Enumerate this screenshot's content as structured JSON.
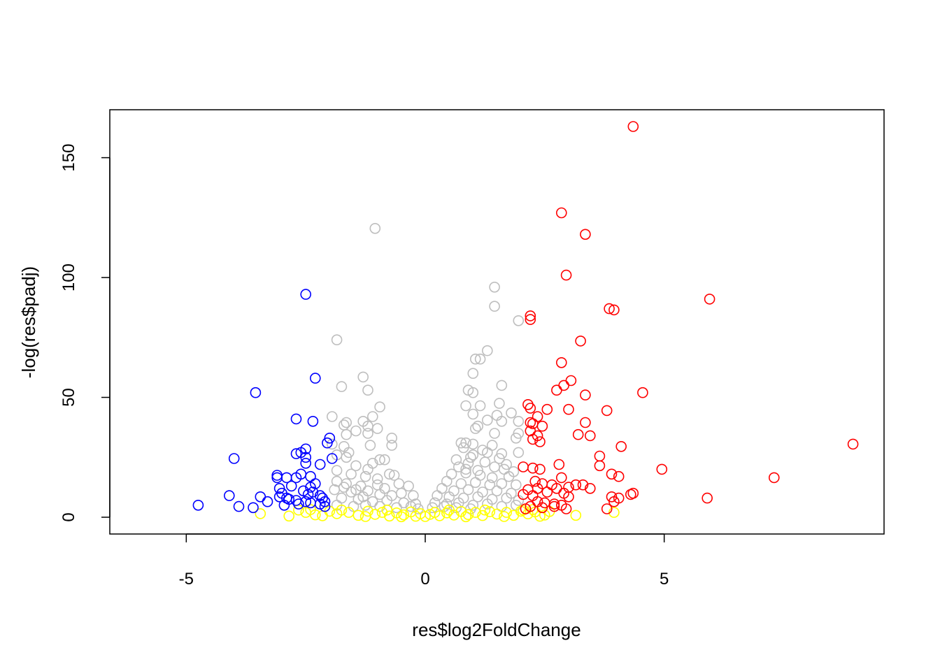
{
  "chart_data": {
    "type": "scatter",
    "title": "",
    "xlabel": "res$log2FoldChange",
    "ylabel": "-log(res$padj)",
    "xlim": [
      -6.6,
      9.6
    ],
    "ylim": [
      -7,
      170
    ],
    "x_ticks": [
      -5,
      0,
      5
    ],
    "y_ticks": [
      0,
      50,
      100,
      150
    ],
    "x_tick_labels": [
      "-5",
      "0",
      "5"
    ],
    "y_tick_labels": [
      "0",
      "50",
      "100",
      "150"
    ],
    "grid": false,
    "legend": "none",
    "marker": "open-circle",
    "series": [
      {
        "color": "#0000ff",
        "points": [
          [
            -2.5,
            93
          ],
          [
            -2.3,
            58
          ],
          [
            -3.55,
            52
          ],
          [
            -2.7,
            41
          ],
          [
            -2.35,
            40
          ],
          [
            -4.0,
            24.5
          ],
          [
            -2.0,
            33
          ],
          [
            -2.05,
            31
          ],
          [
            -2.6,
            27
          ],
          [
            -2.7,
            26.5
          ],
          [
            -1.95,
            24.5
          ],
          [
            -2.5,
            25
          ],
          [
            -2.5,
            22.5
          ],
          [
            -2.2,
            22
          ],
          [
            -2.5,
            28.5
          ],
          [
            -3.1,
            17.5
          ],
          [
            -3.1,
            16.5
          ],
          [
            -2.9,
            16.5
          ],
          [
            -2.7,
            16.5
          ],
          [
            -2.6,
            18
          ],
          [
            -2.4,
            17
          ],
          [
            -2.3,
            14
          ],
          [
            -2.4,
            12.5
          ],
          [
            -2.55,
            11
          ],
          [
            -2.45,
            9.5
          ],
          [
            -2.2,
            9
          ],
          [
            -3.05,
            12
          ],
          [
            -3.0,
            10
          ],
          [
            -2.9,
            8
          ],
          [
            -2.85,
            7.5
          ],
          [
            -3.05,
            8.5
          ],
          [
            -2.95,
            5
          ],
          [
            -2.7,
            7
          ],
          [
            -2.65,
            5.5
          ],
          [
            -2.5,
            6.5
          ],
          [
            -2.4,
            6
          ],
          [
            -2.2,
            5.5
          ],
          [
            -2.1,
            6.5
          ],
          [
            -2.1,
            4.5
          ],
          [
            -3.45,
            8.5
          ],
          [
            -3.3,
            6.5
          ],
          [
            -3.6,
            4
          ],
          [
            -3.9,
            4.5
          ],
          [
            -4.1,
            9
          ],
          [
            -4.75,
            5
          ],
          [
            -2.8,
            13
          ],
          [
            -2.35,
            10.5
          ],
          [
            -2.15,
            8
          ]
        ]
      },
      {
        "color": "#ff0000",
        "points": [
          [
            4.35,
            163
          ],
          [
            2.85,
            127
          ],
          [
            3.35,
            118
          ],
          [
            2.95,
            101
          ],
          [
            5.95,
            91
          ],
          [
            3.85,
            87
          ],
          [
            3.95,
            86.5
          ],
          [
            2.2,
            84
          ],
          [
            2.2,
            82.5
          ],
          [
            3.25,
            73.5
          ],
          [
            2.85,
            64.5
          ],
          [
            3.05,
            57
          ],
          [
            2.75,
            53
          ],
          [
            2.9,
            55
          ],
          [
            4.55,
            52
          ],
          [
            3.35,
            51
          ],
          [
            2.15,
            47
          ],
          [
            2.2,
            45.5
          ],
          [
            2.55,
            45
          ],
          [
            3.0,
            45
          ],
          [
            3.8,
            44.5
          ],
          [
            2.35,
            42
          ],
          [
            2.2,
            39.5
          ],
          [
            2.25,
            39
          ],
          [
            3.35,
            39.5
          ],
          [
            2.45,
            38
          ],
          [
            2.2,
            36
          ],
          [
            2.35,
            34
          ],
          [
            3.2,
            34.5
          ],
          [
            3.45,
            34
          ],
          [
            2.25,
            32.5
          ],
          [
            2.4,
            31.5
          ],
          [
            4.1,
            29.5
          ],
          [
            8.95,
            30.5
          ],
          [
            3.65,
            25.5
          ],
          [
            2.8,
            22
          ],
          [
            3.65,
            21.5
          ],
          [
            2.05,
            21
          ],
          [
            2.25,
            20.5
          ],
          [
            2.4,
            20
          ],
          [
            4.95,
            20
          ],
          [
            3.9,
            18
          ],
          [
            4.05,
            17
          ],
          [
            2.85,
            16.5
          ],
          [
            7.3,
            16.5
          ],
          [
            2.3,
            15
          ],
          [
            2.45,
            14
          ],
          [
            2.65,
            13.5
          ],
          [
            3.15,
            13.5
          ],
          [
            3.3,
            13.5
          ],
          [
            3.0,
            12.5
          ],
          [
            2.75,
            12
          ],
          [
            2.35,
            12
          ],
          [
            2.15,
            11.5
          ],
          [
            3.45,
            12
          ],
          [
            2.55,
            10.5
          ],
          [
            2.9,
            10
          ],
          [
            2.05,
            9.5
          ],
          [
            2.25,
            9
          ],
          [
            3.0,
            8.5
          ],
          [
            4.3,
            9.5
          ],
          [
            4.35,
            10
          ],
          [
            3.9,
            8.5
          ],
          [
            4.05,
            8
          ],
          [
            5.9,
            8
          ],
          [
            3.95,
            6.5
          ],
          [
            2.35,
            6.5
          ],
          [
            2.5,
            6
          ],
          [
            2.7,
            5.5
          ],
          [
            2.85,
            5
          ],
          [
            2.2,
            4.5
          ],
          [
            2.45,
            4
          ],
          [
            2.7,
            4.5
          ],
          [
            2.95,
            3.5
          ],
          [
            3.8,
            3.5
          ],
          [
            2.1,
            3.5
          ]
        ]
      },
      {
        "color": "#bebebe",
        "points": [
          [
            -1.05,
            120.5
          ],
          [
            1.45,
            96
          ],
          [
            1.45,
            88
          ],
          [
            1.95,
            82
          ],
          [
            -1.85,
            74
          ],
          [
            1.3,
            69.5
          ],
          [
            1.05,
            66
          ],
          [
            1.15,
            66
          ],
          [
            1.0,
            60
          ],
          [
            -1.3,
            58.5
          ],
          [
            -1.75,
            54.5
          ],
          [
            -1.2,
            53
          ],
          [
            0.9,
            53
          ],
          [
            1.0,
            52
          ],
          [
            1.6,
            55
          ],
          [
            -0.95,
            46
          ],
          [
            0.85,
            46.5
          ],
          [
            1.15,
            46.5
          ],
          [
            1.55,
            47.5
          ],
          [
            1.8,
            43.5
          ],
          [
            -1.95,
            42
          ],
          [
            -1.1,
            42
          ],
          [
            1.0,
            43
          ],
          [
            1.5,
            42.5
          ],
          [
            -1.7,
            38.5
          ],
          [
            -1.65,
            39.5
          ],
          [
            -1.3,
            40
          ],
          [
            -1.2,
            38
          ],
          [
            1.6,
            40
          ],
          [
            1.3,
            40.5
          ],
          [
            -1.45,
            36
          ],
          [
            -1.0,
            37
          ],
          [
            -1.65,
            34.5
          ],
          [
            -1.2,
            35
          ],
          [
            -0.7,
            33
          ],
          [
            1.1,
            38
          ],
          [
            1.05,
            37
          ],
          [
            1.45,
            35
          ],
          [
            1.95,
            35
          ],
          [
            1.95,
            40
          ],
          [
            -1.95,
            30.5
          ],
          [
            -1.7,
            29.5
          ],
          [
            -0.7,
            30
          ],
          [
            0.85,
            31
          ],
          [
            1.0,
            30.5
          ],
          [
            -1.15,
            30
          ],
          [
            1.9,
            33
          ],
          [
            -1.6,
            27
          ],
          [
            -1.85,
            26
          ],
          [
            -1.65,
            25
          ],
          [
            -0.95,
            24
          ],
          [
            -0.85,
            24
          ],
          [
            -1.1,
            22.5
          ],
          [
            1.3,
            27
          ],
          [
            1.6,
            26.5
          ],
          [
            1.95,
            27
          ],
          [
            -1.45,
            21.5
          ],
          [
            -1.2,
            20
          ],
          [
            -1.85,
            19.5
          ],
          [
            1.7,
            22
          ],
          [
            1.55,
            24.5
          ],
          [
            -1.55,
            18
          ],
          [
            -1.25,
            17
          ],
          [
            -0.75,
            18
          ],
          [
            -0.65,
            17.5
          ],
          [
            -1.85,
            15
          ],
          [
            -1.65,
            14
          ],
          [
            -1.0,
            16
          ],
          [
            -1.35,
            13
          ],
          [
            -0.55,
            14
          ],
          [
            -0.35,
            13
          ],
          [
            -1.9,
            11.5
          ],
          [
            -1.55,
            10.5
          ],
          [
            -1.2,
            11
          ],
          [
            -0.95,
            9.5
          ],
          [
            -0.5,
            10
          ],
          [
            -0.25,
            9
          ],
          [
            -1.75,
            8
          ],
          [
            -1.4,
            7.5
          ],
          [
            -1.1,
            6.5
          ],
          [
            -0.8,
            7
          ],
          [
            -0.45,
            6
          ],
          [
            -0.2,
            5.5
          ],
          [
            -1.85,
            5
          ],
          [
            -1.5,
            4.5
          ],
          [
            -1.25,
            5
          ],
          [
            -0.95,
            4.5
          ],
          [
            -0.6,
            4
          ],
          [
            -0.3,
            4.5
          ],
          [
            -0.15,
            3.5
          ],
          [
            0.75,
            31
          ],
          [
            0.8,
            29
          ],
          [
            0.65,
            24
          ],
          [
            0.9,
            22.5
          ],
          [
            0.7,
            21
          ],
          [
            1.25,
            23
          ],
          [
            1.45,
            21
          ],
          [
            1.65,
            20
          ],
          [
            1.85,
            19
          ],
          [
            0.55,
            18
          ],
          [
            0.85,
            18.5
          ],
          [
            1.15,
            17.5
          ],
          [
            1.4,
            16.5
          ],
          [
            1.75,
            17
          ],
          [
            0.45,
            15
          ],
          [
            0.75,
            14
          ],
          [
            1.05,
            14.5
          ],
          [
            1.35,
            13.5
          ],
          [
            1.6,
            14
          ],
          [
            1.9,
            13.5
          ],
          [
            0.35,
            12
          ],
          [
            0.6,
            11
          ],
          [
            0.9,
            11.5
          ],
          [
            1.2,
            10.5
          ],
          [
            1.5,
            11
          ],
          [
            1.8,
            10
          ],
          [
            0.25,
            9
          ],
          [
            0.5,
            8.5
          ],
          [
            0.8,
            8
          ],
          [
            1.1,
            8.5
          ],
          [
            1.4,
            7.5
          ],
          [
            1.7,
            8
          ],
          [
            1.95,
            7
          ],
          [
            0.2,
            6
          ],
          [
            0.45,
            5.5
          ],
          [
            0.7,
            6
          ],
          [
            1.0,
            5
          ],
          [
            1.3,
            5.5
          ],
          [
            1.6,
            4.5
          ],
          [
            1.9,
            5
          ],
          [
            0.15,
            4
          ],
          [
            0.4,
            4.5
          ],
          [
            0.65,
            4
          ],
          [
            0.95,
            3.5
          ],
          [
            -1.7,
            12.5
          ],
          [
            -1.45,
            11.5
          ],
          [
            -0.85,
            12
          ],
          [
            -0.7,
            9
          ],
          [
            -1.3,
            8.5
          ],
          [
            -1.0,
            13.5
          ],
          [
            1.0,
            26
          ],
          [
            1.2,
            28
          ],
          [
            0.95,
            25
          ],
          [
            1.4,
            30
          ],
          [
            0.85,
            20
          ],
          [
            1.1,
            19.5
          ]
        ]
      },
      {
        "color": "#ffff00",
        "points": [
          [
            -3.45,
            1.5
          ],
          [
            -2.85,
            0.5
          ],
          [
            -2.5,
            2
          ],
          [
            -2.3,
            1
          ],
          [
            -2.0,
            2.5
          ],
          [
            -1.85,
            1.5
          ],
          [
            -1.6,
            2
          ],
          [
            -1.4,
            0.8
          ],
          [
            -1.2,
            2.5
          ],
          [
            -1.05,
            1.2
          ],
          [
            -0.9,
            2
          ],
          [
            -0.75,
            0.5
          ],
          [
            -0.6,
            1.8
          ],
          [
            -0.45,
            1
          ],
          [
            -0.3,
            2.2
          ],
          [
            -0.2,
            0.4
          ],
          [
            -0.1,
            1.5
          ],
          [
            0.0,
            0.3
          ],
          [
            0.1,
            1.2
          ],
          [
            0.2,
            2
          ],
          [
            0.3,
            0.6
          ],
          [
            0.45,
            1.8
          ],
          [
            0.6,
            0.9
          ],
          [
            0.75,
            2.4
          ],
          [
            0.9,
            1.1
          ],
          [
            1.05,
            2
          ],
          [
            1.2,
            0.7
          ],
          [
            1.35,
            2.3
          ],
          [
            1.5,
            1.3
          ],
          [
            1.7,
            2
          ],
          [
            1.85,
            0.8
          ],
          [
            2.0,
            2.5
          ],
          [
            2.15,
            1.4
          ],
          [
            2.3,
            2.2
          ],
          [
            2.5,
            0.9
          ],
          [
            2.6,
            2.4
          ],
          [
            3.15,
            0.8
          ],
          [
            3.95,
            2
          ],
          [
            -2.65,
            3
          ],
          [
            -2.15,
            0.6
          ],
          [
            -1.75,
            3
          ],
          [
            -1.25,
            0.3
          ],
          [
            -0.8,
            3
          ],
          [
            -0.5,
            0.2
          ],
          [
            0.5,
            3
          ],
          [
            0.85,
            0.2
          ],
          [
            1.25,
            3
          ],
          [
            1.65,
            0.3
          ],
          [
            2.05,
            3
          ],
          [
            2.4,
            0.4
          ],
          [
            -2.4,
            3.2
          ],
          [
            2.25,
            3.2
          ]
        ]
      }
    ]
  }
}
